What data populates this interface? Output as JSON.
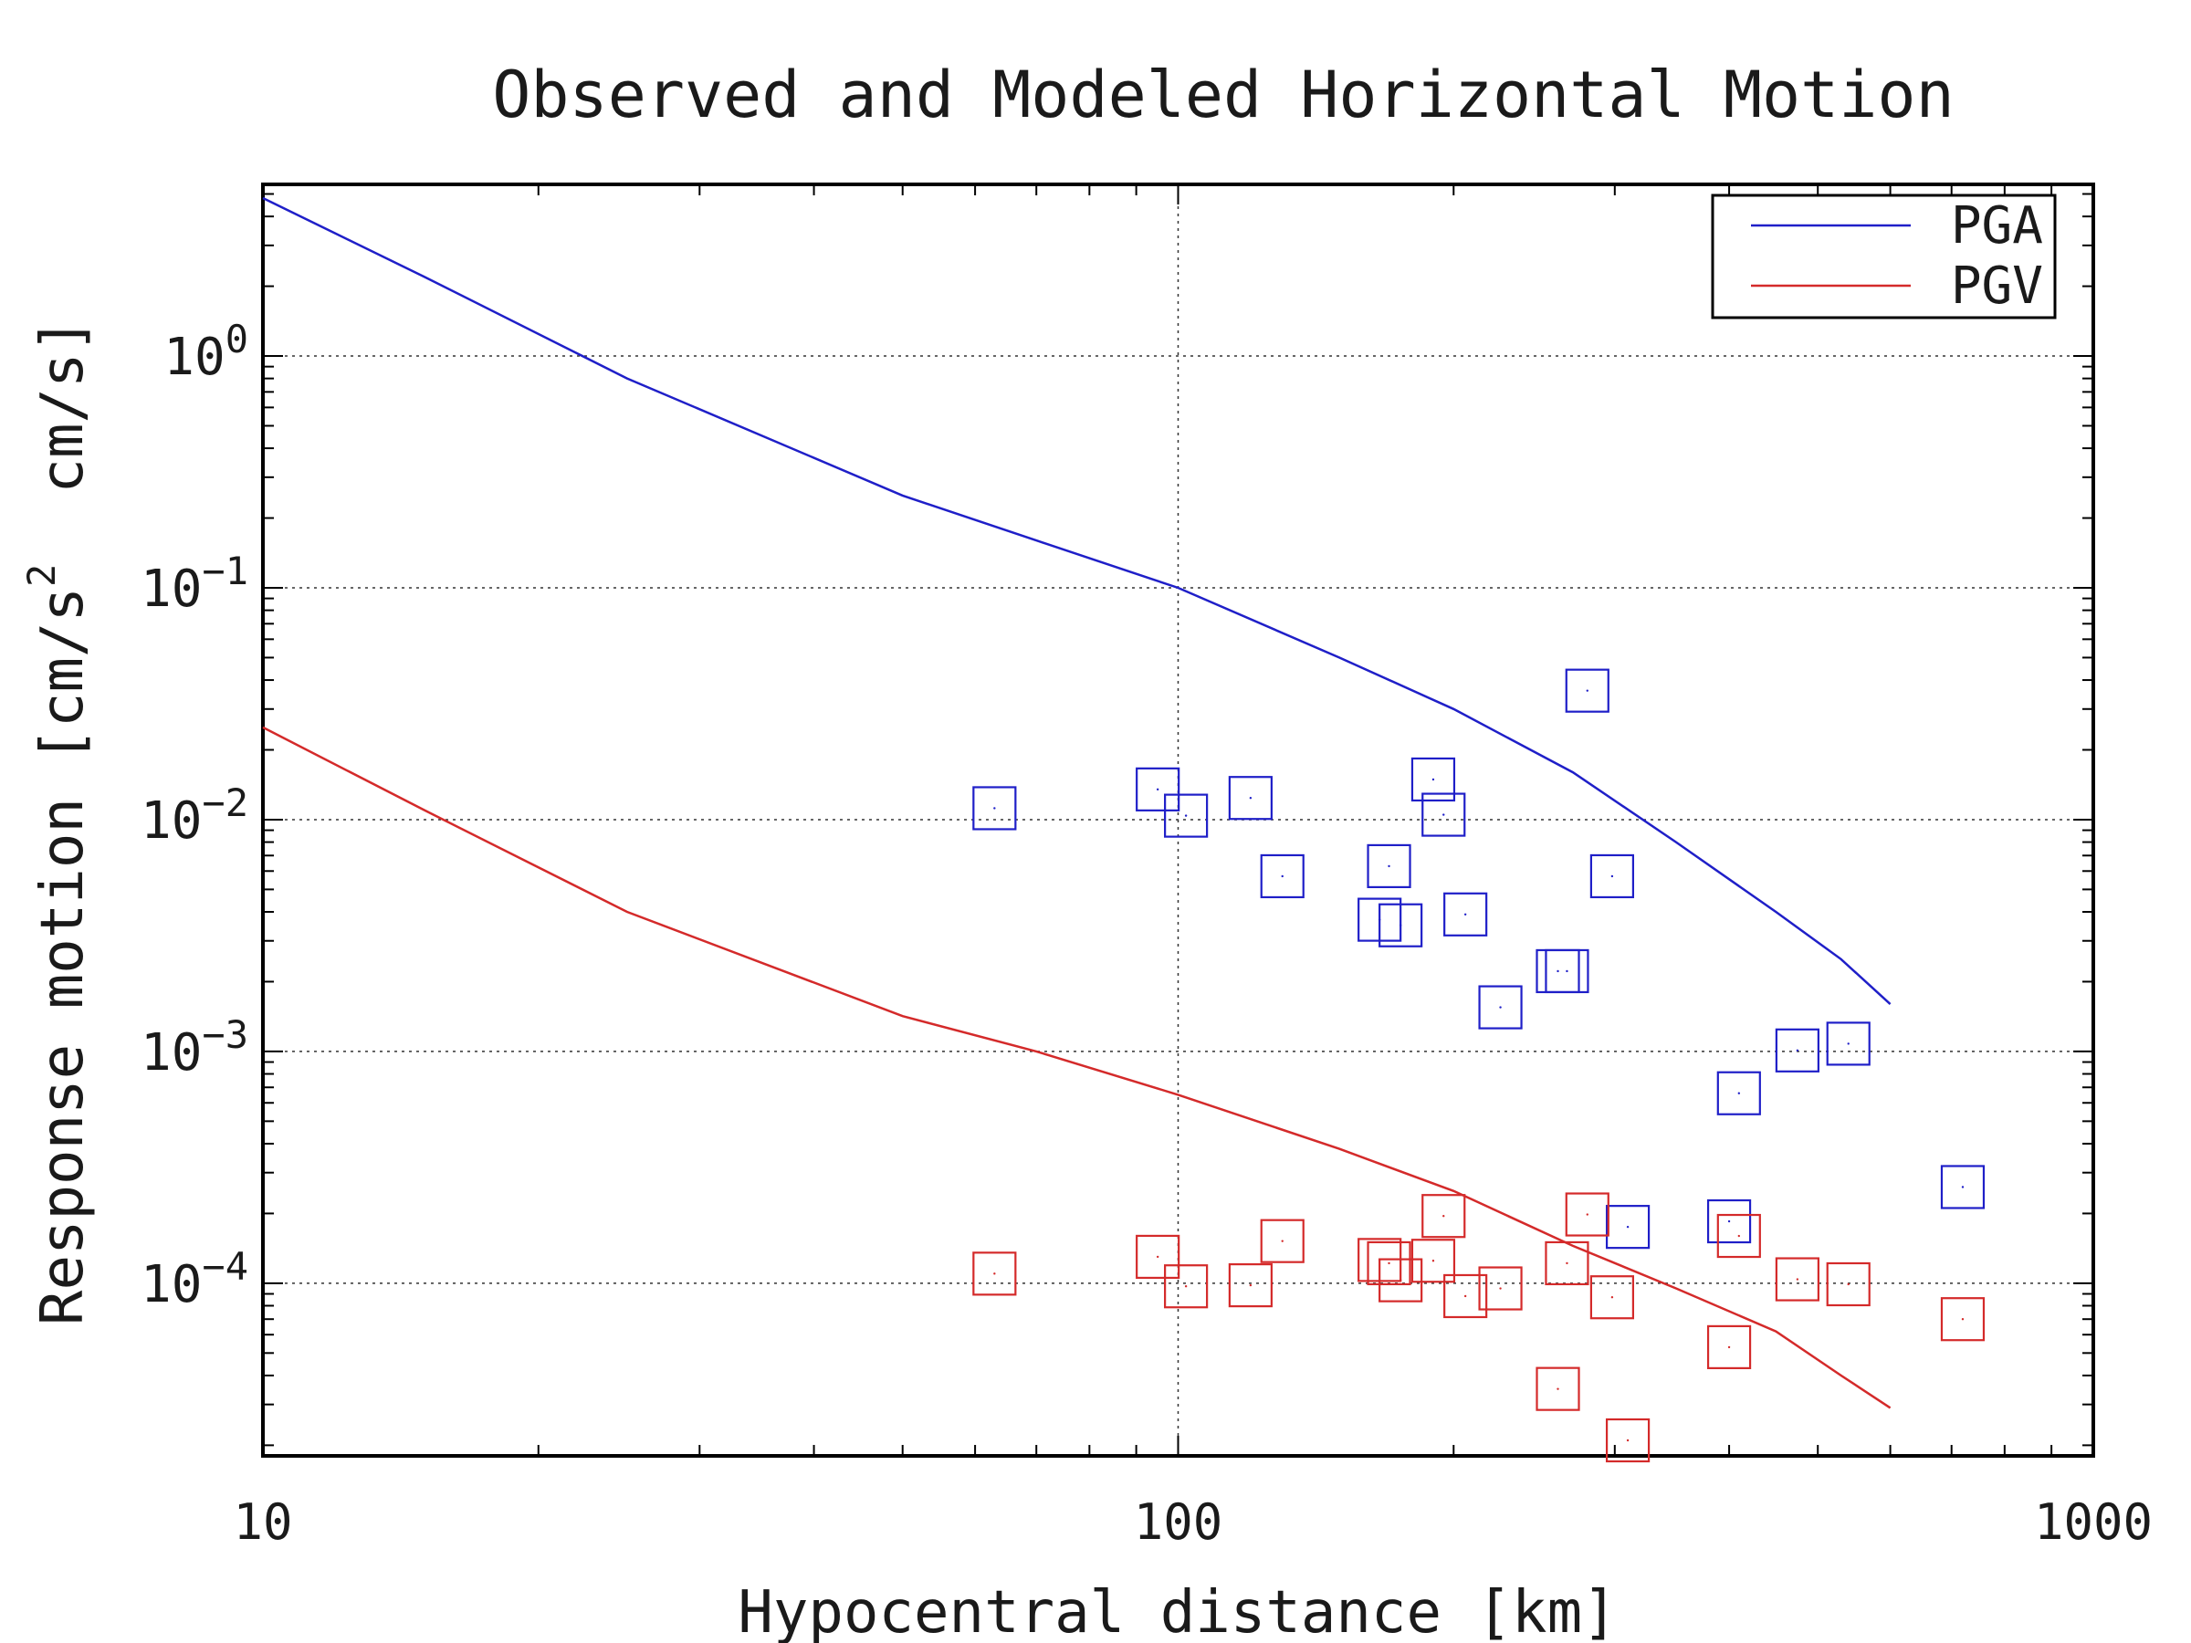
{
  "chart_data": {
    "type": "scatter",
    "title": "Observed and Modeled Horizontal Motion",
    "xlabel": "Hypocentral distance [km]",
    "ylabel": {
      "main": "Response motion [cm/s",
      "sup": "2",
      "rest": "  cm/s]"
    },
    "x_scale": "log",
    "y_scale": "log",
    "xlim": [
      10,
      1000
    ],
    "ylim": [
      1.8e-05,
      5.5
    ],
    "grid": true,
    "x_ticks": [
      {
        "value": 10,
        "label": "10"
      },
      {
        "value": 100,
        "label": "100"
      },
      {
        "value": 1000,
        "label": "1000"
      }
    ],
    "y_ticks": [
      {
        "value": 1,
        "base": "10",
        "exp": "0"
      },
      {
        "value": 0.1,
        "base": "10",
        "exp": "−1"
      },
      {
        "value": 0.01,
        "base": "10",
        "exp": "−2"
      },
      {
        "value": 0.001,
        "base": "10",
        "exp": "−3"
      },
      {
        "value": 0.0001,
        "base": "10",
        "exp": "−4"
      }
    ],
    "legend_position": "top-right",
    "series": [
      {
        "name": "PGA",
        "color": "#1f1fc8",
        "model_curve": [
          [
            10,
            4.8
          ],
          [
            15,
            2.2
          ],
          [
            25,
            0.8
          ],
          [
            50,
            0.25
          ],
          [
            70,
            0.16
          ],
          [
            100,
            0.1
          ],
          [
            150,
            0.05
          ],
          [
            200,
            0.03
          ],
          [
            270,
            0.016
          ],
          [
            350,
            0.008
          ],
          [
            450,
            0.004
          ],
          [
            530,
            0.0025
          ],
          [
            600,
            0.0016
          ]
        ],
        "observed": [
          [
            63,
            0.0112
          ],
          [
            95,
            0.0135
          ],
          [
            102,
            0.0104
          ],
          [
            120,
            0.0124
          ],
          [
            130,
            0.0057
          ],
          [
            166,
            0.0037
          ],
          [
            170,
            0.0063
          ],
          [
            175,
            0.0035
          ],
          [
            190,
            0.0149
          ],
          [
            195,
            0.0105
          ],
          [
            206,
            0.0039
          ],
          [
            225,
            0.00155
          ],
          [
            260,
            0.00222
          ],
          [
            266,
            0.00222
          ],
          [
            280,
            0.036
          ],
          [
            298,
            0.0057
          ],
          [
            310,
            0.000175
          ],
          [
            400,
            0.000185
          ],
          [
            410,
            0.00066
          ],
          [
            475,
            0.00101
          ],
          [
            540,
            0.00108
          ],
          [
            720,
            0.00026
          ]
        ]
      },
      {
        "name": "PGV",
        "color": "#d42a2a",
        "model_curve": [
          [
            10,
            0.025
          ],
          [
            15,
            0.011
          ],
          [
            25,
            0.004
          ],
          [
            50,
            0.00142
          ],
          [
            70,
            0.001
          ],
          [
            100,
            0.00065
          ],
          [
            150,
            0.00038
          ],
          [
            200,
            0.00025
          ],
          [
            270,
            0.000145
          ],
          [
            350,
            9.5e-05
          ],
          [
            450,
            6.2e-05
          ],
          [
            530,
            4e-05
          ],
          [
            600,
            2.9e-05
          ]
        ],
        "observed": [
          [
            63,
            0.00011
          ],
          [
            95,
            0.00013
          ],
          [
            102,
            9.7e-05
          ],
          [
            120,
            9.8e-05
          ],
          [
            130,
            0.000152
          ],
          [
            166,
            0.000126
          ],
          [
            170,
            0.000122
          ],
          [
            175,
            0.000103
          ],
          [
            190,
            0.000125
          ],
          [
            195,
            0.000195
          ],
          [
            206,
            8.8e-05
          ],
          [
            225,
            9.5e-05
          ],
          [
            260,
            3.5e-05
          ],
          [
            266,
            0.000122
          ],
          [
            280,
            0.000198
          ],
          [
            298,
            8.7e-05
          ],
          [
            310,
            2.1e-05
          ],
          [
            400,
            5.3e-05
          ],
          [
            410,
            0.00016
          ],
          [
            475,
            0.000104
          ],
          [
            540,
            9.9e-05
          ],
          [
            720,
            7e-05
          ]
        ]
      }
    ]
  }
}
